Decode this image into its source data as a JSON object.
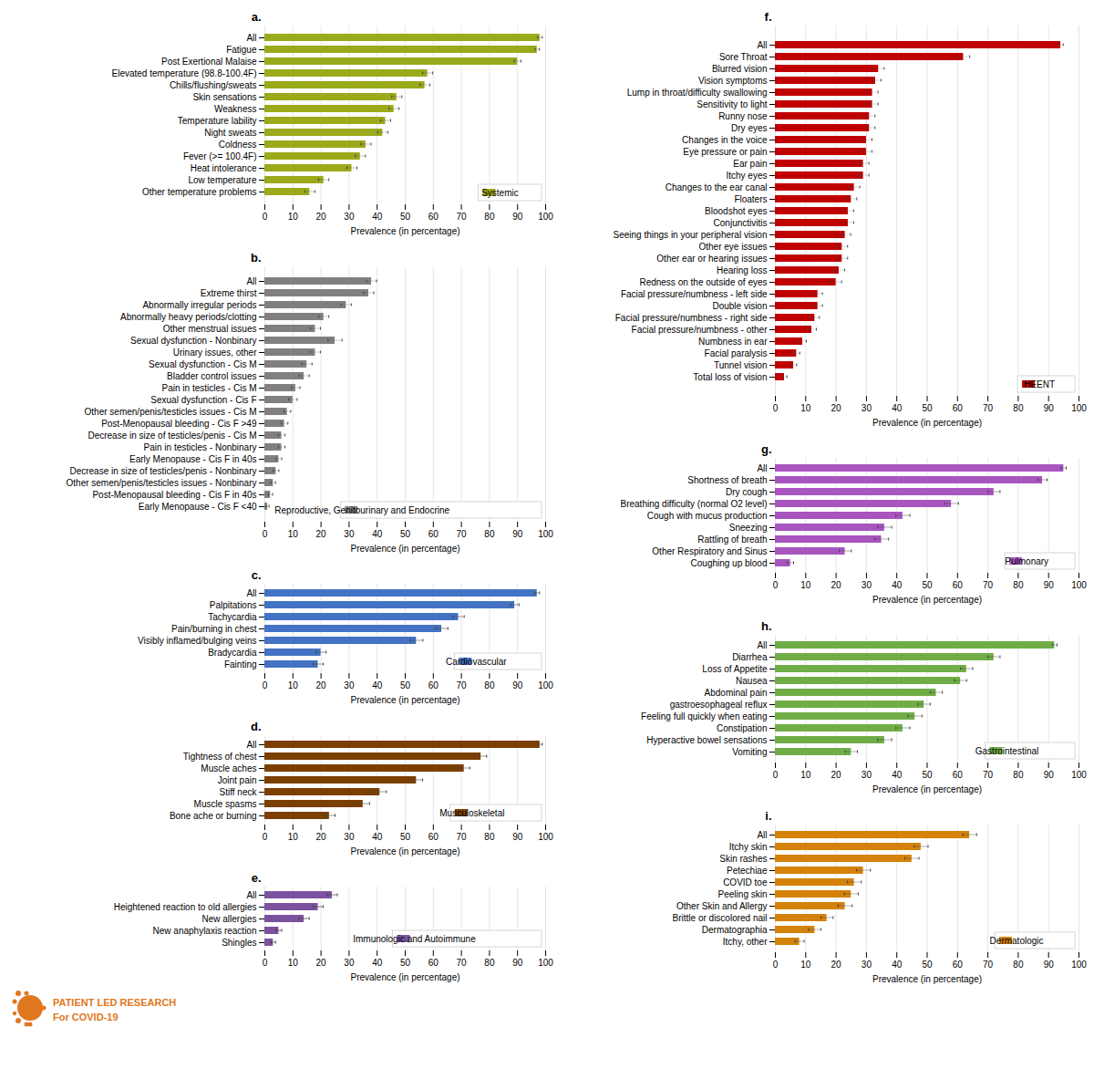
{
  "chart_data": [
    {
      "type": "bar",
      "orientation": "horizontal",
      "title": "a.",
      "categories": [
        "All",
        "Fatigue",
        "Post Exertional Malaise",
        "Elevated temperature (98.8-100.4F)",
        "Chills/flushing/sweats",
        "Skin sensations",
        "Weakness",
        "Temperature lability",
        "Night sweats",
        "Coldness",
        "Fever (>= 100.4F)",
        "Heat intolerance",
        "Low temperature",
        "Other temperature problems"
      ],
      "series": [
        {
          "name": "Systemic",
          "color": "#9aaa1a",
          "values": [
            98,
            97,
            90,
            58,
            57,
            47,
            46,
            43,
            42,
            36,
            34,
            31,
            21,
            16
          ],
          "errors": [
            0.8,
            0.8,
            1.2,
            1.8,
            1.8,
            1.8,
            1.8,
            1.8,
            1.8,
            1.8,
            1.8,
            1.8,
            1.8,
            1.8
          ]
        }
      ],
      "xlabel": "Prevalence (in percentage)",
      "xlim": [
        0,
        100
      ],
      "xticks": [
        0,
        10,
        20,
        30,
        40,
        50,
        60,
        70,
        80,
        90,
        100
      ],
      "grid": true,
      "legend": "lower right"
    },
    {
      "type": "bar",
      "orientation": "horizontal",
      "title": "b.",
      "categories": [
        "All",
        "Extreme thirst",
        "Abnormally irregular periods",
        "Abnormally heavy periods/clotting",
        "Other menstrual issues",
        "Sexual dysfunction - Nonbinary",
        "Urinary issues, other",
        "Sexual dysfunction - Cis M",
        "Bladder control issues",
        "Pain in testicles - Cis M",
        "Sexual dysfunction - Cis F",
        "Other semen/penis/testicles issues - Cis M",
        "Post-Menopausal bleeding - Cis F >49",
        "Decrease in size of testicles/penis - Cis M",
        "Pain in testicles - Nonbinary",
        "Early Menopause - Cis F in 40s",
        "Decrease in size of testicles/penis - Nonbinary",
        "Other semen/penis/testicles issues - Nonbinary",
        "Post-Menopausal bleeding - Cis F in 40s",
        "Early Menopause - Cis F <40"
      ],
      "series": [
        {
          "name": "Reproductive, Genitourinary and Endocrine",
          "color": "#808080",
          "values": [
            38,
            37,
            29,
            21,
            18,
            25,
            18,
            15,
            14,
            11,
            10,
            8,
            7,
            6,
            6,
            5,
            4,
            3,
            2,
            1
          ],
          "errors": [
            1.8,
            1.8,
            1.8,
            1.8,
            1.8,
            2.5,
            1.8,
            1.8,
            1.8,
            1.5,
            1.5,
            1.2,
            1.2,
            1.2,
            1.2,
            1.0,
            1.0,
            0.8,
            0.8,
            0.5
          ]
        }
      ],
      "xlabel": "Prevalence (in percentage)",
      "xlim": [
        0,
        100
      ],
      "xticks": [
        0,
        10,
        20,
        30,
        40,
        50,
        60,
        70,
        80,
        90,
        100
      ],
      "grid": true,
      "legend": "lower right"
    },
    {
      "type": "bar",
      "orientation": "horizontal",
      "title": "c.",
      "categories": [
        "All",
        "Palpitations",
        "Tachycardia",
        "Pain/burning in chest",
        "Visibly inflamed/bulging veins",
        "Bradycardia",
        "Fainting"
      ],
      "series": [
        {
          "name": "Cardiovascular",
          "color": "#4472c4",
          "values": [
            97,
            89,
            69,
            63,
            54,
            20,
            19
          ],
          "errors": [
            0.8,
            1.5,
            2.0,
            2.2,
            2.3,
            1.8,
            1.8
          ]
        }
      ],
      "xlabel": "Prevalence (in percentage)",
      "xlim": [
        0,
        100
      ],
      "xticks": [
        0,
        10,
        20,
        30,
        40,
        50,
        60,
        70,
        80,
        90,
        100
      ],
      "grid": true,
      "legend": "lower right"
    },
    {
      "type": "bar",
      "orientation": "horizontal",
      "title": "d.",
      "categories": [
        "All",
        "Tightness of chest",
        "Muscle aches",
        "Joint pain",
        "Stiff neck",
        "Muscle spasms",
        "Bone ache or burning"
      ],
      "series": [
        {
          "name": "Musculoskeletal",
          "color": "#7b3f00",
          "values": [
            98,
            77,
            71,
            54,
            41,
            35,
            23
          ],
          "errors": [
            0.8,
            2.0,
            2.0,
            2.2,
            2.3,
            2.3,
            2.0
          ]
        }
      ],
      "xlabel": "Prevalence (in percentage)",
      "xlim": [
        0,
        100
      ],
      "xticks": [
        0,
        10,
        20,
        30,
        40,
        50,
        60,
        70,
        80,
        90,
        100
      ],
      "grid": true,
      "legend": "lower right"
    },
    {
      "type": "bar",
      "orientation": "horizontal",
      "title": "e.",
      "categories": [
        "All",
        "Heightened reaction to old allergies",
        "New allergies",
        "New anaphylaxis reaction",
        "Shingles"
      ],
      "series": [
        {
          "name": "Immunologic and Autoimmune",
          "color": "#7b52a0",
          "values": [
            24,
            19,
            14,
            5,
            3
          ],
          "errors": [
            1.8,
            1.8,
            1.8,
            1.0,
            0.8
          ]
        }
      ],
      "xlabel": "Prevalence (in percentage)",
      "xlim": [
        0,
        100
      ],
      "xticks": [
        0,
        10,
        20,
        30,
        40,
        50,
        60,
        70,
        80,
        90,
        100
      ],
      "grid": true,
      "legend": "lower right",
      "annotations": [
        "PATIENT LED RESEARCH",
        "For COVID-19"
      ]
    },
    {
      "type": "bar",
      "orientation": "horizontal",
      "title": "f.",
      "categories": [
        "All",
        "Sore Throat",
        "Blurred vision",
        "Vision symptoms",
        "Lump in throat/difficulty swallowing",
        "Sensitivity to light",
        "Runny nose",
        "Dry eyes",
        "Changes in the voice",
        "Eye pressure or pain",
        "Ear pain",
        "Itchy eyes",
        "Changes to the ear canal",
        "Floaters",
        "Bloodshot eyes",
        "Conjunctivitis",
        "Seeing things in your peripheral vision",
        "Other eye issues",
        "Other ear or hearing issues",
        "Hearing loss",
        "Redness on the outside of eyes",
        "Facial pressure/numbness - left side",
        "Double vision",
        "Facial pressure/numbness - right side",
        "Facial pressure/numbness - other",
        "Numbness in ear",
        "Facial paralysis",
        "Tunnel vision",
        "Total loss of vision"
      ],
      "series": [
        {
          "name": "HEENT",
          "color": "#c00000",
          "values": [
            94,
            62,
            34,
            33,
            32,
            32,
            31,
            31,
            30,
            30,
            29,
            29,
            26,
            25,
            24,
            24,
            23,
            22,
            22,
            21,
            20,
            14,
            14,
            13,
            12,
            9,
            7,
            6,
            3
          ],
          "errors": [
            0.8,
            2.0,
            1.8,
            1.8,
            1.8,
            1.8,
            1.8,
            1.8,
            1.8,
            1.8,
            1.8,
            1.8,
            1.8,
            1.8,
            1.8,
            1.8,
            1.8,
            1.8,
            1.8,
            1.8,
            1.8,
            1.5,
            1.5,
            1.5,
            1.5,
            1.2,
            1.0,
            1.0,
            0.8
          ]
        }
      ],
      "xlabel": "Prevalence (in percentage)",
      "xlim": [
        0,
        100
      ],
      "xticks": [
        0,
        10,
        20,
        30,
        40,
        50,
        60,
        70,
        80,
        90,
        100
      ],
      "grid": true,
      "legend": "lower right"
    },
    {
      "type": "bar",
      "orientation": "horizontal",
      "title": "g.",
      "categories": [
        "All",
        "Shortness of breath",
        "Dry cough",
        "Breathing difficulty (normal O2 level)",
        "Cough with mucus production",
        "Sneezing",
        "Rattling of breath",
        "Other Respiratory and Sinus",
        "Coughing up blood"
      ],
      "series": [
        {
          "name": "Pulmonary",
          "color": "#a855c0",
          "values": [
            95,
            88,
            72,
            58,
            42,
            36,
            35,
            23,
            5
          ],
          "errors": [
            0.8,
            1.5,
            2.0,
            2.3,
            2.3,
            2.3,
            2.3,
            2.0,
            1.0
          ]
        }
      ],
      "xlabel": "Prevalence (in percentage)",
      "xlim": [
        0,
        100
      ],
      "xticks": [
        0,
        10,
        20,
        30,
        40,
        50,
        60,
        70,
        80,
        90,
        100
      ],
      "grid": true,
      "legend": "lower right"
    },
    {
      "type": "bar",
      "orientation": "horizontal",
      "title": "h.",
      "categories": [
        "All",
        "Diarrhea",
        "Loss of Appetite",
        "Nausea",
        "Abdominal pain",
        "gastroesophageal reflux",
        "Feeling full quickly when eating",
        "Constipation",
        "Hyperactive bowel sensations",
        "Vomiting"
      ],
      "series": [
        {
          "name": "Gastrointestinal",
          "color": "#70ad47",
          "values": [
            92,
            72,
            63,
            61,
            53,
            49,
            46,
            42,
            36,
            25
          ],
          "errors": [
            0.8,
            2.0,
            2.0,
            2.0,
            2.0,
            2.0,
            2.3,
            2.3,
            2.3,
            2.0
          ]
        }
      ],
      "xlabel": "Prevalence (in percentage)",
      "xlim": [
        0,
        100
      ],
      "xticks": [
        0,
        10,
        20,
        30,
        40,
        50,
        60,
        70,
        80,
        90,
        100
      ],
      "grid": true,
      "legend": "lower right"
    },
    {
      "type": "bar",
      "orientation": "horizontal",
      "title": "i.",
      "categories": [
        "All",
        "Itchy skin",
        "Skin rashes",
        "Petechiae",
        "COVID toe",
        "Peeling skin",
        "Other Skin and Allergy",
        "Brittle or discolored nail",
        "Dermatographia",
        "Itchy, other"
      ],
      "series": [
        {
          "name": "Dermatologic",
          "color": "#d4820a",
          "values": [
            64,
            48,
            45,
            29,
            26,
            25,
            23,
            17,
            13,
            8
          ],
          "errors": [
            2.3,
            2.3,
            2.3,
            2.3,
            2.3,
            2.3,
            2.3,
            2.0,
            2.0,
            1.5
          ]
        }
      ],
      "xlabel": "Prevalence (in percentage)",
      "xlim": [
        0,
        100
      ],
      "xticks": [
        0,
        10,
        20,
        30,
        40,
        50,
        60,
        70,
        80,
        90,
        100
      ],
      "grid": true,
      "legend": "lower right"
    }
  ]
}
